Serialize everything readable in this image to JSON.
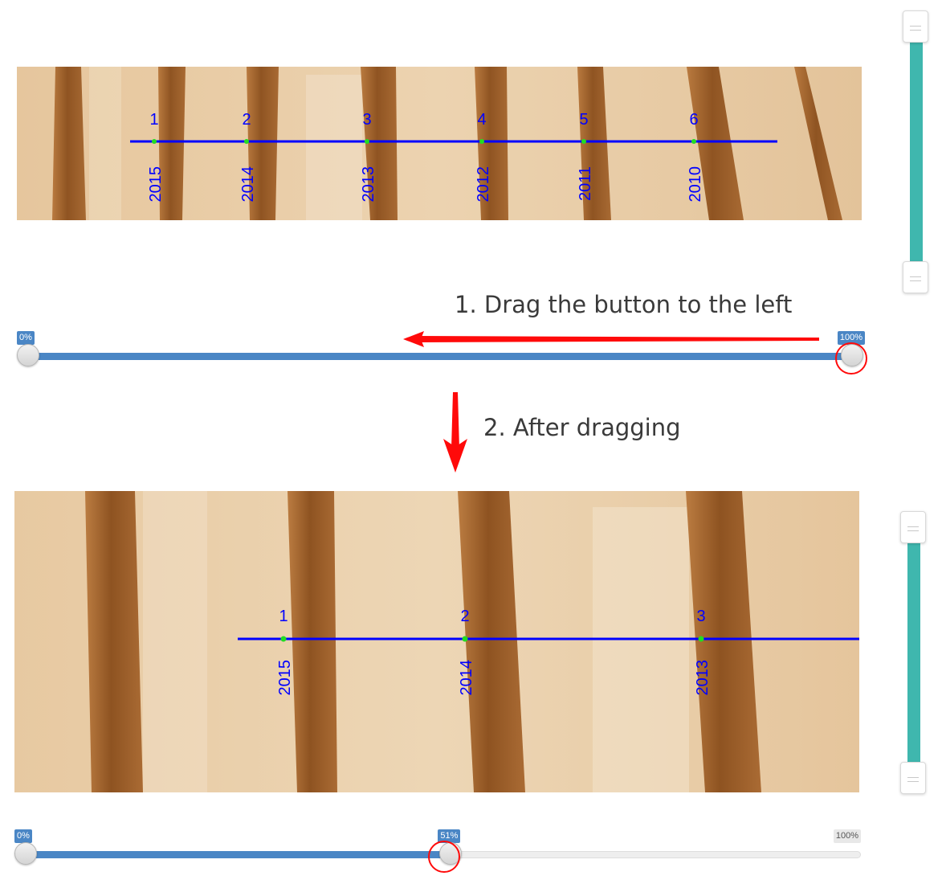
{
  "colors": {
    "wood_light": "#e8cba3",
    "wood_ring": "#9a5d2a",
    "measure_line": "#0000ff",
    "marker_dot": "#22dd22",
    "slider_fill": "#4a86c5",
    "vertical_slider": "#3fb7ae",
    "annotation_red": "#ff0a0a"
  },
  "step1": {
    "caption": "1. Drag the button to the left",
    "arrow": "left-arrow",
    "ring_markers": [
      {
        "number": "1",
        "year": "2015"
      },
      {
        "number": "2",
        "year": "2014"
      },
      {
        "number": "3",
        "year": "2013"
      },
      {
        "number": "4",
        "year": "2012"
      },
      {
        "number": "5",
        "year": "2011"
      },
      {
        "number": "6",
        "year": "2010"
      }
    ],
    "zoom_slider": {
      "min_label": "0%",
      "max_label": "100%",
      "value_percent": 100
    },
    "vertical_slider": {
      "low_value": 0,
      "high_value": 1
    }
  },
  "step2": {
    "caption": "2. After dragging",
    "arrow": "down-arrow",
    "ring_markers": [
      {
        "number": "1",
        "year": "2015"
      },
      {
        "number": "2",
        "year": "2014"
      },
      {
        "number": "3",
        "year": "2013"
      }
    ],
    "zoom_slider": {
      "min_label": "0%",
      "value_label": "51%",
      "max_label": "100%",
      "value_percent": 51
    },
    "vertical_slider": {
      "low_value": 0,
      "high_value": 1
    }
  }
}
